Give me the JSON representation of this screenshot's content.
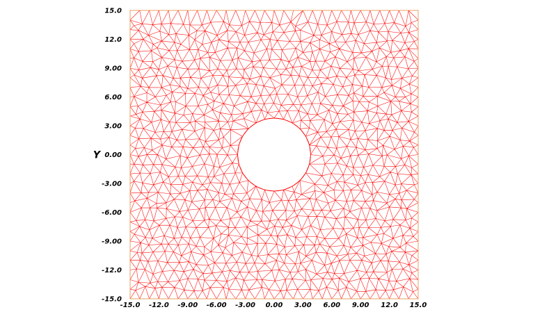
{
  "chart_data": {
    "type": "mesh",
    "xlabel": "",
    "ylabel": "Y",
    "xlim": [
      -15,
      15
    ],
    "ylim": [
      -15,
      15
    ],
    "x_tick_labels": [
      {
        "value": -15,
        "label": "-15.0"
      },
      {
        "value": -12,
        "label": "-12.0"
      },
      {
        "value": -9,
        "label": "-9.00"
      },
      {
        "value": -6,
        "label": "-6.00"
      },
      {
        "value": -3,
        "label": "-3.00"
      },
      {
        "value": 0,
        "label": "0.00"
      },
      {
        "value": 3,
        "label": "3.00"
      },
      {
        "value": 6,
        "label": "6.00"
      },
      {
        "value": 9,
        "label": "9.00"
      },
      {
        "value": 12,
        "label": "12.0"
      },
      {
        "value": 15,
        "label": "15.0"
      }
    ],
    "y_tick_labels": [
      {
        "value": 15,
        "label": "15.0"
      },
      {
        "value": 12,
        "label": "12.0"
      },
      {
        "value": 9,
        "label": "9.00"
      },
      {
        "value": 6,
        "label": "6.00"
      },
      {
        "value": 3,
        "label": "3.00"
      },
      {
        "value": 0,
        "label": "0.00"
      },
      {
        "value": -3,
        "label": "-3.00"
      },
      {
        "value": -6,
        "label": "-6.00"
      },
      {
        "value": -9,
        "label": "-9.00"
      },
      {
        "value": -12,
        "label": "-12.0"
      },
      {
        "value": -15,
        "label": "-15.0"
      }
    ],
    "domain": {
      "outer_square": {
        "xmin": -15,
        "xmax": 15,
        "ymin": -15,
        "ymax": 15
      },
      "hole": {
        "shape": "circle",
        "center": [
          0,
          0
        ],
        "radius": 3.8
      }
    },
    "mesh": {
      "element": "triangle",
      "approx_edge_length": 1.0
    },
    "colors": {
      "mesh_edge": "#ff0000",
      "frame": "#e8a060",
      "background": "#ffffff"
    },
    "grid": false,
    "legend": "none"
  }
}
